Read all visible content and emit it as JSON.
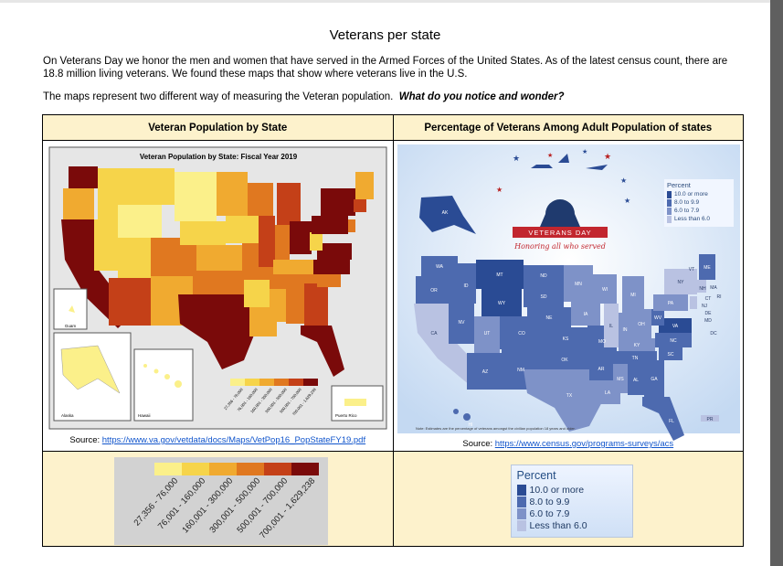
{
  "document": {
    "title": "Veterans per state",
    "intro": "On Veterans Day we honor the men and women that have served in the Armed Forces of the United States.  As of the latest census count, there are 18.8 million living veterans. We found these maps that show where veterans live in the U.S.",
    "question_lead": "The maps represent two different way of measuring the Veteran population.",
    "question_bold": "What do you notice and wonder?"
  },
  "table": {
    "col1_header": "Veteran Population by State",
    "col2_header": "Percentage of Veterans Among Adult Population of states"
  },
  "map1": {
    "inner_title": "Veteran Population by State: Fiscal Year 2019",
    "source_label": "Source:",
    "source_link": "https://www.va.gov/vetdata/docs/Maps/VetPop16_PopStateFY19.pdf",
    "inset_labels": [
      "Alaska",
      "Hawaii",
      "Puerto Rico",
      "Guam"
    ],
    "colors": [
      "#fbf08a",
      "#f6d44a",
      "#f0aa30",
      "#e07820",
      "#c44018",
      "#7a0a0a"
    ]
  },
  "map2": {
    "banner": "VETERANS DAY",
    "tagline": "Honoring all who served",
    "legend_title": "Percent",
    "note": "Note: Estimates are the percentage of veterans amongst the civilian population 18 years and older.",
    "source_label": "Source:",
    "source_link": "https://www.census.gov/programs-surveys/acs",
    "state_labels": [
      "WA",
      "OR",
      "CA",
      "NV",
      "ID",
      "MT",
      "WY",
      "UT",
      "AZ",
      "CO",
      "NM",
      "ND",
      "SD",
      "NE",
      "KS",
      "OK",
      "TX",
      "MN",
      "IA",
      "MO",
      "AR",
      "LA",
      "WI",
      "IL",
      "MI",
      "IN",
      "OH",
      "KY",
      "TN",
      "MS",
      "AL",
      "GA",
      "FL",
      "SC",
      "NC",
      "VA",
      "WV",
      "PA",
      "NY",
      "ME",
      "VT",
      "NH",
      "MA",
      "RI",
      "CT",
      "NJ",
      "DE",
      "MD",
      "DC",
      "AK",
      "HI",
      "PR"
    ],
    "colors": [
      "#2a4b94",
      "#4d6aaf",
      "#7e92c8",
      "#b9c2e2"
    ]
  },
  "legend1": {
    "ranges": [
      "27,356 - 76,000",
      "76,001 - 160,000",
      "160,001 - 300,000",
      "300,001 - 500,000",
      "500,001 - 700,000",
      "700,001 - 1,629,238"
    ],
    "colors": [
      "#fbf08a",
      "#f6d44a",
      "#f0aa30",
      "#e07820",
      "#c44018",
      "#7a0a0a"
    ]
  },
  "legend2": {
    "title": "Percent",
    "ranges": [
      "10.0 or more",
      "8.0 to 9.9",
      "6.0 to 7.9",
      "Less than 6.0"
    ],
    "colors": [
      "#2a4b94",
      "#4d6aaf",
      "#7e92c8",
      "#b9c2e2"
    ]
  }
}
